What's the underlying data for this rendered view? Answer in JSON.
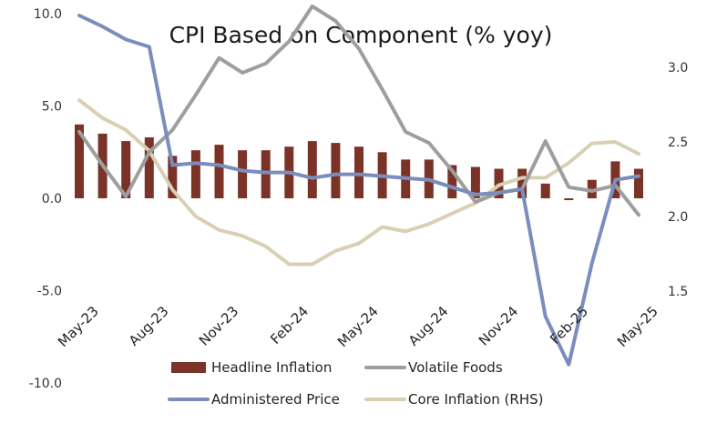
{
  "chart_data": {
    "type": "bar+line",
    "title": "CPI Based on Component (% yoy)",
    "categories": [
      "May-23",
      "Jun-23",
      "Jul-23",
      "Aug-23",
      "Sep-23",
      "Oct-23",
      "Nov-23",
      "Dec-23",
      "Jan-24",
      "Feb-24",
      "Mar-24",
      "Apr-24",
      "May-24",
      "Jun-24",
      "Jul-24",
      "Aug-24",
      "Sep-24",
      "Oct-24",
      "Nov-24",
      "Dec-24",
      "Jan-25",
      "Feb-25",
      "Mar-25",
      "Apr-25",
      "May-25"
    ],
    "x_tick_labels": [
      "May-23",
      "Aug-23",
      "Nov-23",
      "Feb-24",
      "May-24",
      "Aug-24",
      "Nov-24",
      "Feb-25",
      "May-25"
    ],
    "y_left": {
      "ticks": [
        "10.0",
        "5.0",
        "0.0",
        "-5.0",
        "-10.0"
      ],
      "tick_values": [
        10,
        5,
        0,
        -5,
        -10
      ],
      "range": [
        -10,
        10
      ]
    },
    "y_right": {
      "ticks": [
        "3.0",
        "2.5",
        "2.0",
        "1.5"
      ],
      "tick_values": [
        3.0,
        2.5,
        2.0,
        1.5
      ],
      "range": [
        1.5,
        3.0
      ]
    },
    "series": [
      {
        "name": "Headline Inflation",
        "type": "bar",
        "axis": "left",
        "color": "#7b3328",
        "values": [
          4.0,
          3.5,
          3.1,
          3.3,
          2.3,
          2.6,
          2.9,
          2.6,
          2.6,
          2.8,
          3.1,
          3.0,
          2.8,
          2.5,
          2.1,
          2.1,
          1.8,
          1.7,
          1.6,
          1.6,
          0.8,
          -0.1,
          1.0,
          2.0,
          1.6
        ]
      },
      {
        "name": "Volatile Foods",
        "type": "line",
        "axis": "left",
        "color": "#9e9e9e",
        "values": [
          3.6,
          1.8,
          0.1,
          2.5,
          3.7,
          5.6,
          7.6,
          6.8,
          7.3,
          8.5,
          10.4,
          9.6,
          8.1,
          5.9,
          3.6,
          3.0,
          1.5,
          -0.2,
          0.3,
          0.5,
          3.1,
          0.6,
          0.4,
          0.7,
          -0.9
        ]
      },
      {
        "name": "Administered Price",
        "type": "line",
        "axis": "left",
        "color": "#7b8dbd",
        "values": [
          9.9,
          9.3,
          8.6,
          8.2,
          1.8,
          1.9,
          1.8,
          1.5,
          1.4,
          1.4,
          1.1,
          1.3,
          1.3,
          1.2,
          1.1,
          1.0,
          0.6,
          0.2,
          0.3,
          0.5,
          -6.4,
          -9.0,
          -3.5,
          1.0,
          1.2
        ]
      },
      {
        "name": "Core Inflation (RHS)",
        "type": "line",
        "axis": "right",
        "color": "#d9d0b3",
        "values": [
          2.78,
          2.66,
          2.58,
          2.44,
          2.18,
          2.0,
          1.91,
          1.87,
          1.8,
          1.68,
          1.68,
          1.77,
          1.82,
          1.93,
          1.9,
          1.95,
          2.02,
          2.09,
          2.21,
          2.26,
          2.26,
          2.36,
          2.49,
          2.5,
          2.42
        ]
      }
    ],
    "legend": {
      "placement": "bottom",
      "columns": 2
    },
    "grid": false
  }
}
